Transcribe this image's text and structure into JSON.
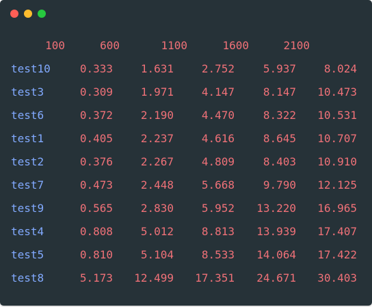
{
  "window": {
    "buttons": [
      {
        "name": "close",
        "color": "#ff5f56"
      },
      {
        "name": "minimize",
        "color": "#ffbd2e"
      },
      {
        "name": "maximize",
        "color": "#27c93f"
      }
    ]
  },
  "colors": {
    "background": "#263238",
    "label": "#82aaff",
    "value": "#f07178",
    "header": "#f07178"
  },
  "table": {
    "headers": [
      "100",
      "600",
      "1100",
      "1600",
      "2100"
    ],
    "rows": [
      {
        "label": "test10",
        "values": [
          "0.333",
          "1.631",
          "2.752",
          "5.937",
          "8.024"
        ]
      },
      {
        "label": "test3",
        "values": [
          "0.309",
          "1.971",
          "4.147",
          "8.147",
          "10.473"
        ]
      },
      {
        "label": "test6",
        "values": [
          "0.372",
          "2.190",
          "4.470",
          "8.322",
          "10.531"
        ]
      },
      {
        "label": "test1",
        "values": [
          "0.405",
          "2.237",
          "4.616",
          "8.645",
          "10.707"
        ]
      },
      {
        "label": "test2",
        "values": [
          "0.376",
          "2.267",
          "4.809",
          "8.403",
          "10.910"
        ]
      },
      {
        "label": "test7",
        "values": [
          "0.473",
          "2.448",
          "5.668",
          "9.790",
          "12.125"
        ]
      },
      {
        "label": "test9",
        "values": [
          "0.565",
          "2.830",
          "5.952",
          "13.220",
          "16.965"
        ]
      },
      {
        "label": "test4",
        "values": [
          "0.808",
          "5.012",
          "8.813",
          "13.939",
          "17.407"
        ]
      },
      {
        "label": "test5",
        "values": [
          "0.810",
          "5.104",
          "8.533",
          "14.064",
          "17.422"
        ]
      },
      {
        "label": "test8",
        "values": [
          "5.173",
          "12.499",
          "17.351",
          "24.671",
          "30.403"
        ]
      }
    ]
  }
}
